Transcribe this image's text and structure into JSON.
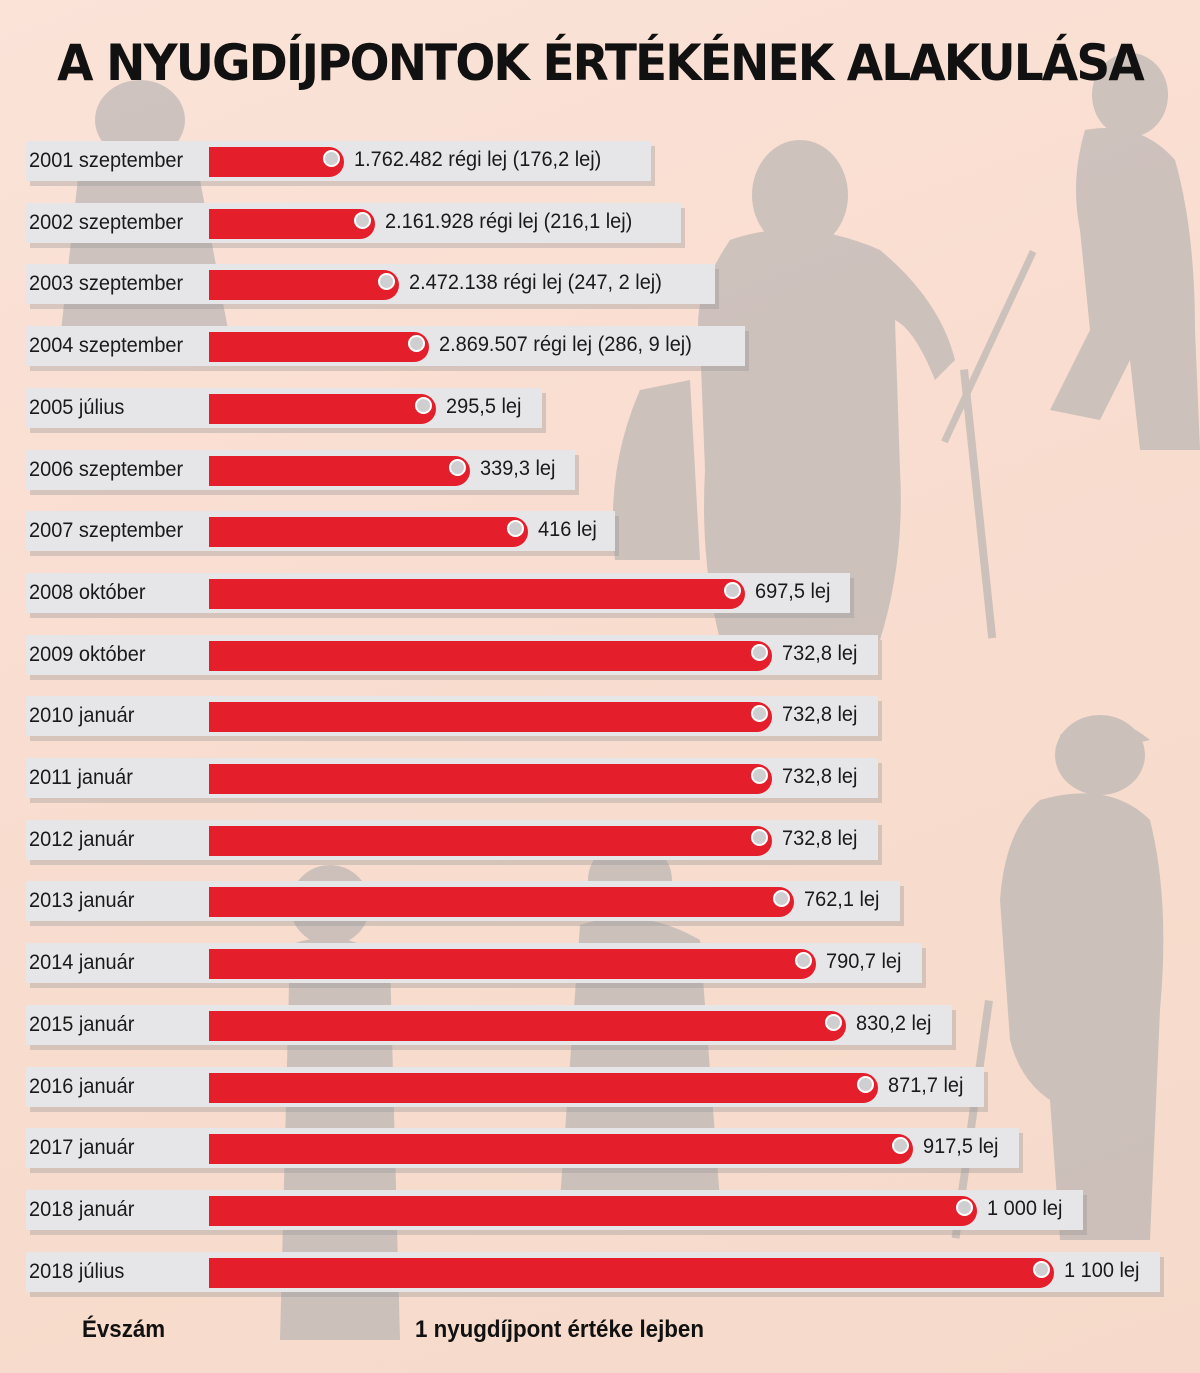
{
  "chart_data": {
    "type": "bar",
    "orientation": "horizontal",
    "title": "A NYUGDÍJPONTOK ÉRTÉKÉNEK ALAKULÁSA",
    "ylabel": "Évszám",
    "xlabel": "1 nyugdíjpont értéke lejben",
    "categories": [
      "2001 szeptember",
      "2002 szeptember",
      "2003 szeptember",
      "2004 szeptember",
      "2005 július",
      "2006 szeptember",
      "2007 szeptember",
      "2008 október",
      "2009 október",
      "2010 január",
      "2011 január",
      "2012 január",
      "2013 január",
      "2014 január",
      "2015 január",
      "2016 január",
      "2017 január",
      "2018 január",
      "2018 július"
    ],
    "values": [
      176.2,
      216.1,
      247.2,
      286.9,
      295.5,
      339.3,
      416,
      697.5,
      732.8,
      732.8,
      732.8,
      732.8,
      762.1,
      790.7,
      830.2,
      871.7,
      917.5,
      1000,
      1100
    ],
    "value_labels": [
      "1.762.482 régi lej (176,2 lej)",
      "2.161.928 régi lej (216,1 lej)",
      "2.472.138 régi lej (247, 2 lej)",
      "2.869.507 régi lej (286, 9 lej)",
      "295,5 lej",
      "339,3 lej",
      "416 lej",
      "697,5 lej",
      "732,8 lej",
      "732,8 lej",
      "732,8 lej",
      "732,8 lej",
      "762,1 lej",
      "790,7 lej",
      "830,2 lej",
      "871,7 lej",
      "917,5 lej",
      "1 000 lej",
      "1 100 lej"
    ],
    "grid": false,
    "legend": "none",
    "colors": {
      "bar": "#e41e2a",
      "row_background": "#e6e6e8",
      "marker": "#cfcfd1",
      "silhouette": "#a9a9ab"
    }
  }
}
